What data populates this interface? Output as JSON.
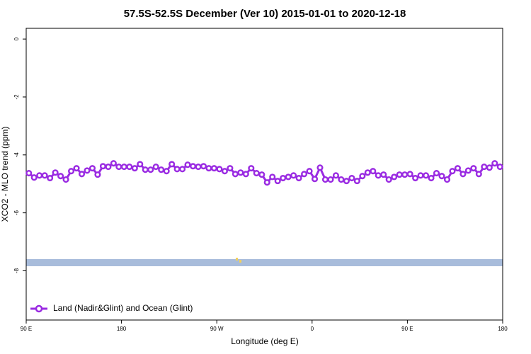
{
  "chart_data": {
    "type": "line",
    "title": "57.5S-52.5S December (Ver 10)   2015-01-01 to 2020-12-18",
    "x_label": "Longitude (deg E)",
    "y_label": "XCO2 - MLO trend (ppm)",
    "xlim": [
      90,
      540
    ],
    "ylim": [
      -9.7,
      0.37
    ],
    "xticks": [
      {
        "value": 90,
        "label": "90 E"
      },
      180,
      {
        "value": 270,
        "label": "90 W"
      },
      {
        "value": 360,
        "label": "0"
      },
      {
        "value": 450,
        "label": "90 E"
      },
      {
        "value": 540,
        "label": "180"
      }
    ],
    "yticks": [
      0,
      -2,
      -4,
      -6,
      -8
    ],
    "legend": "bottom-left",
    "x": [
      92.5,
      97.5,
      102.5,
      107.5,
      112.5,
      117.5,
      122.5,
      127.5,
      132.5,
      137.5,
      142.5,
      147.5,
      152.5,
      157.5,
      162.5,
      167.5,
      172.5,
      177.5,
      182.5,
      187.5,
      192.5,
      197.5,
      202.5,
      207.5,
      212.5,
      217.5,
      222.5,
      227.5,
      232.5,
      237.5,
      242.5,
      247.5,
      252.5,
      257.5,
      262.5,
      267.5,
      272.5,
      277.5,
      282.5,
      287.5,
      292.5,
      297.5,
      302.5,
      307.5,
      312.5,
      317.5,
      322.5,
      327.5,
      332.5,
      337.5,
      342.5,
      347.5,
      352.5,
      357.5,
      362.5,
      367.5,
      372.5,
      377.5,
      382.5,
      387.5,
      392.5,
      397.5,
      402.5,
      407.5,
      412.5,
      417.5,
      422.5,
      427.5,
      432.5,
      437.5,
      442.5,
      447.5,
      452.5,
      457.5,
      462.5,
      467.5,
      472.5,
      477.5,
      482.5,
      487.5,
      492.5,
      497.5,
      502.5,
      507.5,
      512.5,
      517.5,
      522.5,
      527.5,
      532.5,
      537.5
    ],
    "series": [
      {
        "name": "Land (Nadir&Glint) and Ocean (Glint)",
        "color": "#9a2be2",
        "values": [
          -4.63,
          -4.78,
          -4.71,
          -4.71,
          -4.8,
          -4.61,
          -4.73,
          -4.85,
          -4.56,
          -4.46,
          -4.66,
          -4.54,
          -4.46,
          -4.68,
          -4.39,
          -4.41,
          -4.29,
          -4.41,
          -4.41,
          -4.41,
          -4.46,
          -4.32,
          -4.51,
          -4.51,
          -4.41,
          -4.51,
          -4.56,
          -4.32,
          -4.49,
          -4.49,
          -4.34,
          -4.39,
          -4.41,
          -4.39,
          -4.46,
          -4.46,
          -4.49,
          -4.56,
          -4.46,
          -4.66,
          -4.61,
          -4.66,
          -4.46,
          -4.63,
          -4.68,
          -4.95,
          -4.76,
          -4.9,
          -4.8,
          -4.76,
          -4.71,
          -4.8,
          -4.66,
          -4.56,
          -4.83,
          -4.44,
          -4.85,
          -4.85,
          -4.71,
          -4.85,
          -4.9,
          -4.8,
          -4.9,
          -4.73,
          -4.61,
          -4.56,
          -4.71,
          -4.68,
          -4.85,
          -4.76,
          -4.68,
          -4.68,
          -4.66,
          -4.8,
          -4.71,
          -4.71,
          -4.8,
          -4.63,
          -4.73,
          -4.85,
          -4.56,
          -4.46,
          -4.66,
          -4.54,
          -4.46,
          -4.66,
          -4.41,
          -4.44,
          -4.29,
          -4.41
        ]
      }
    ]
  }
}
